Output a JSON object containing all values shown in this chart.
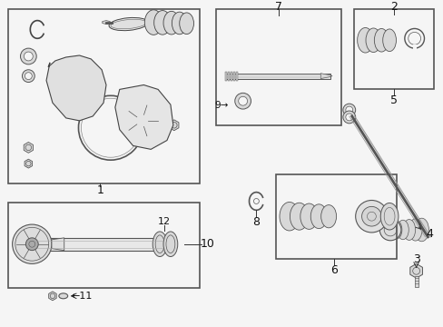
{
  "bg_color": "#f5f5f5",
  "border_color": "#333333",
  "text_color": "#111111",
  "fig_width": 4.89,
  "fig_height": 3.6,
  "dpi": 100,
  "gray_light": "#d8d8d8",
  "gray_mid": "#aaaaaa",
  "gray_dark": "#555555",
  "line_color": "#333333"
}
